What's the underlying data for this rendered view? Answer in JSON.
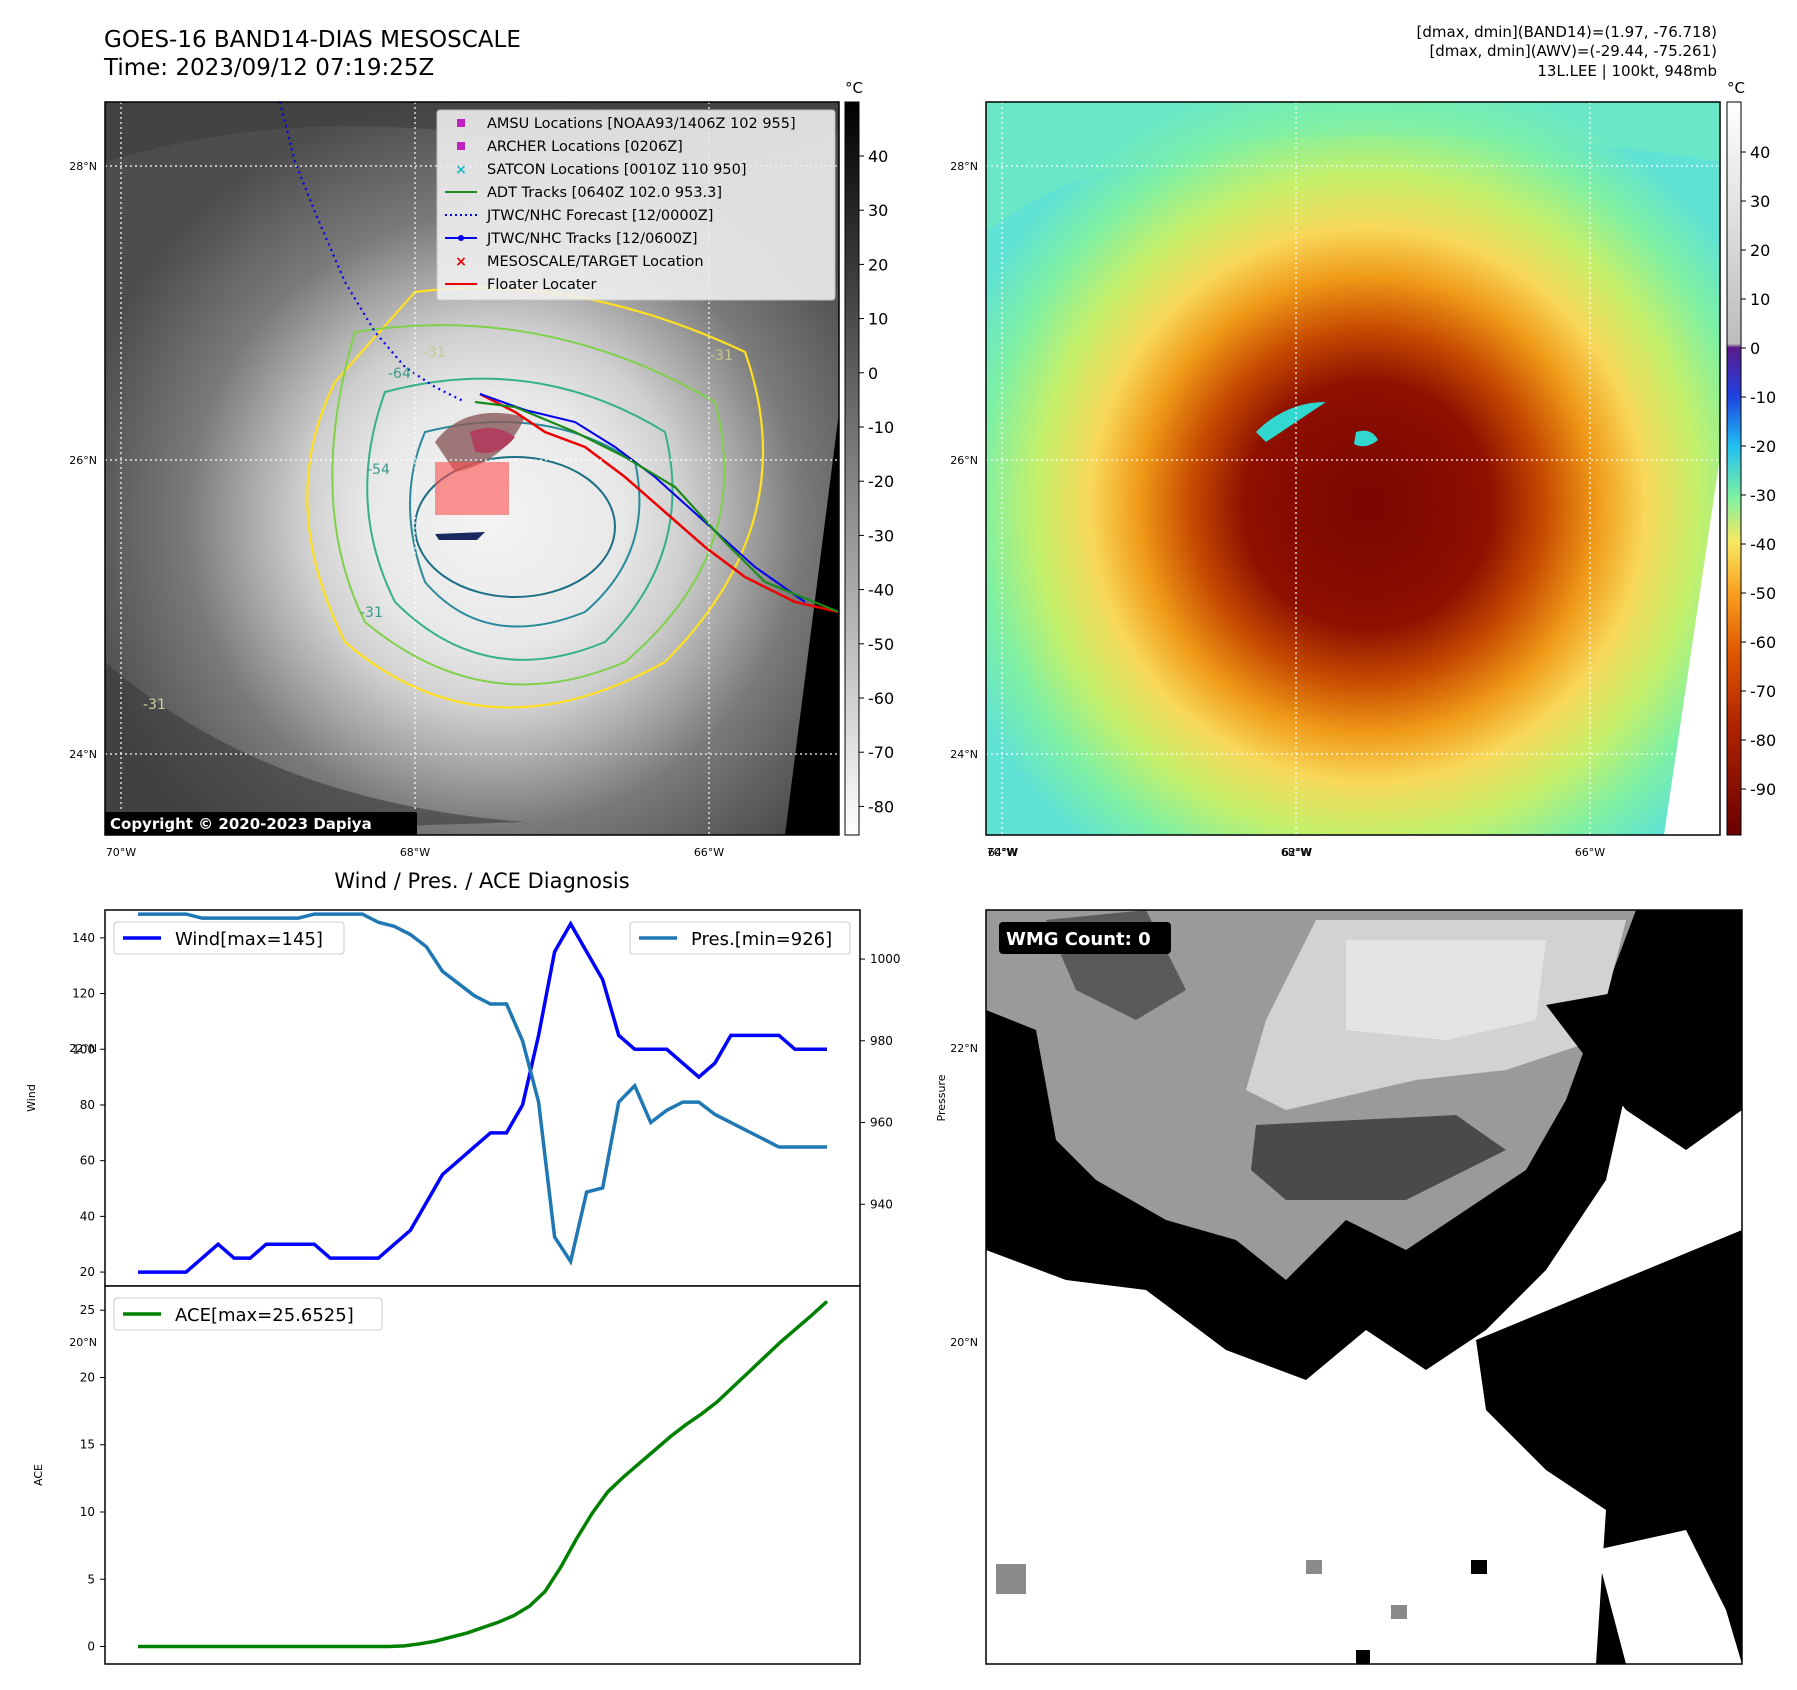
{
  "header": {
    "title": "GOES-16 BAND14-DIAS MESOSCALE",
    "time": "Time: 2023/09/12 07:19:25Z",
    "dmax_band14": "[dmax, dmin](BAND14)=(1.97, -76.718)",
    "dmax_awv": "[dmax, dmin](AWV)=(-29.44, -75.261)",
    "storm": "13L.LEE | 100kt, 948mb"
  },
  "map_left": {
    "lat_labels": [
      "28°N",
      "26°N",
      "24°N",
      "22°N",
      "20°N"
    ],
    "lat_values": [
      28,
      26,
      24,
      22,
      20
    ],
    "lon_labels": [
      "70°W",
      "68°W",
      "66°W",
      "64°W",
      "62°W"
    ],
    "lon_values": [
      -70,
      -68,
      -66,
      -64,
      -62
    ],
    "contour_labels": [
      "-31",
      "-31",
      "-31",
      "-64",
      "-54",
      "-31"
    ],
    "copyright": "Copyright © 2020-2023 Dapiya",
    "legend": [
      {
        "label": "AMSU Locations [NOAA93/1406Z 102 955]",
        "marker": "square",
        "color": "#c020c0"
      },
      {
        "label": "ARCHER Locations [0206Z]",
        "marker": "square",
        "color": "#c020c0"
      },
      {
        "label": "SATCON Locations [0010Z 110 950]",
        "marker": "x",
        "color": "#20b8c8"
      },
      {
        "label": "ADT Tracks [0640Z 102.0 953.3]",
        "marker": "line",
        "color": "#1a8a1a"
      },
      {
        "label": "JTWC/NHC Forecast [12/0000Z]",
        "marker": "dotted",
        "color": "#0000ee"
      },
      {
        "label": "JTWC/NHC Tracks [12/0600Z]",
        "marker": "line-dot",
        "color": "#0000ee"
      },
      {
        "label": "MESOSCALE/TARGET Location",
        "marker": "x",
        "color": "#ee0000"
      },
      {
        "label": "Floater Locater",
        "marker": "line",
        "color": "#ee0000"
      }
    ],
    "colorbar": {
      "unit": "°C",
      "ticks": [
        40,
        30,
        20,
        10,
        0,
        -10,
        -20,
        -30,
        -40,
        -50,
        -60,
        -70,
        -80
      ]
    }
  },
  "map_right": {
    "lat_labels": [
      "28°N",
      "26°N",
      "24°N",
      "22°N",
      "20°N"
    ],
    "lon_labels": [
      "70°W",
      "68°W",
      "66°W",
      "64°W",
      "62°W"
    ],
    "colorbar": {
      "unit": "°C",
      "ticks": [
        40,
        30,
        20,
        10,
        0,
        -10,
        -20,
        -30,
        -40,
        -50,
        -60,
        -70,
        -80,
        -90
      ]
    }
  },
  "wmg": {
    "label": "WMG Count: 0"
  },
  "chart_data": [
    {
      "type": "line",
      "title": "Wind / Pres. / ACE Diagnosis",
      "ylabel": "Wind",
      "ylabel_right": "Pressure",
      "ylim": [
        15,
        150
      ],
      "ylim_right": [
        920,
        1012
      ],
      "yticks": [
        20,
        40,
        60,
        80,
        100,
        120,
        140
      ],
      "yticks_right": [
        940,
        960,
        980,
        1000
      ],
      "legend_placement": [
        "top-left",
        "top-right"
      ],
      "series": [
        {
          "name": "Wind[max=145]",
          "color": "#0000ff",
          "axis": "left",
          "values": [
            20,
            20,
            20,
            20,
            25,
            30,
            25,
            25,
            30,
            30,
            30,
            30,
            25,
            25,
            25,
            25,
            30,
            35,
            45,
            55,
            60,
            65,
            70,
            70,
            80,
            105,
            135,
            145,
            135,
            125,
            105,
            100,
            100,
            100,
            95,
            90,
            95,
            105,
            105,
            105,
            105,
            100,
            100,
            100
          ]
        },
        {
          "name": "Pres.[min=926]",
          "color": "#1f77b4",
          "axis": "right",
          "values": [
            1011,
            1011,
            1011,
            1011,
            1010,
            1010,
            1010,
            1010,
            1010,
            1010,
            1010,
            1011,
            1011,
            1011,
            1011,
            1009,
            1008,
            1006,
            1003,
            997,
            994,
            991,
            989,
            989,
            980,
            965,
            932,
            926,
            943,
            944,
            965,
            969,
            960,
            963,
            965,
            965,
            962,
            960,
            958,
            956,
            954,
            954,
            954,
            954
          ]
        }
      ]
    },
    {
      "type": "line",
      "ylabel": "ACE",
      "ylim": [
        -1.3,
        26.8
      ],
      "yticks": [
        0,
        5,
        10,
        15,
        20,
        25
      ],
      "legend_placement": "top-left",
      "series": [
        {
          "name": "ACE[max=25.6525]",
          "color": "#008000",
          "values": [
            0,
            0,
            0,
            0,
            0,
            0,
            0,
            0,
            0,
            0,
            0,
            0,
            0,
            0,
            0,
            0,
            0,
            0.05,
            0.2,
            0.4,
            0.7,
            1.0,
            1.4,
            1.8,
            2.3,
            3.0,
            4.1,
            5.9,
            8.0,
            9.9,
            11.5,
            12.6,
            13.6,
            14.6,
            15.6,
            16.5,
            17.3,
            18.2,
            19.3,
            20.4,
            21.5,
            22.6,
            23.6,
            24.6,
            25.6525
          ]
        }
      ]
    }
  ]
}
